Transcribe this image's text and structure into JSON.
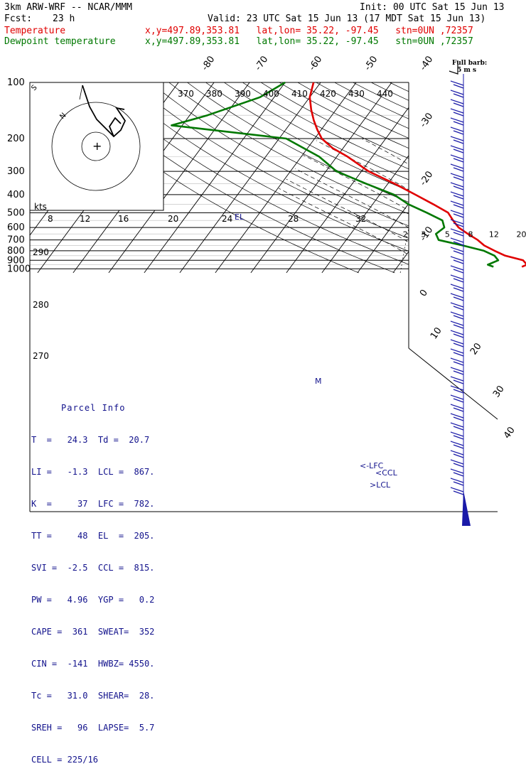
{
  "header": {
    "model": "3km ARW-WRF -- NCAR/MMM",
    "init": "Init: 00 UTC Sat 15 Jun 13",
    "fcst_label": "Fcst:",
    "fcst_value": "23 h",
    "valid": "Valid: 23 UTC Sat 15 Jun 13 (17 MDT Sat 15 Jun 13)",
    "temp_label": "Temperature",
    "dew_label": "Dewpoint temperature",
    "location": "x,y=497.89,353.81   lat,lon= 35.22, -97.45   stn=0UN ,72357"
  },
  "wind_barb": {
    "title": "Full barb:",
    "value": "5 m s"
  },
  "parcel_info": {
    "title": "Parcel Info",
    "rows": [
      "T  =   24.3  Td =  20.7",
      "LI =   -1.3  LCL =  867.",
      "K  =     37  LFC =  782.",
      "TT =     48  EL  =  205.",
      "SVI =  -2.5  CCL =  815.",
      "PW =   4.96  YGP =   0.2",
      "CAPE =  361  SWEAT=  352",
      "CIN =  -141  HWBZ= 4550.",
      "Tc =   31.0  SHEAR=  28.",
      "SREH =   96  LAPSE=  5.7",
      "CELL = 225/16"
    ]
  },
  "colors": {
    "temperature": "#e00000",
    "dewpoint": "#007800",
    "parcel_text": "#12128c",
    "hodograph_labels": "#12128c"
  },
  "chart_data": {
    "type": "line",
    "subtype": "skew-T log-p sounding",
    "pressure_levels": [
      100,
      200,
      300,
      400,
      500,
      600,
      700,
      800,
      900,
      1000
    ],
    "pressure_range": [
      100,
      1020
    ],
    "isotherm_labels": [
      -80,
      -70,
      -60,
      -50,
      -40,
      -30,
      -20,
      -10,
      0,
      10,
      20,
      30,
      40
    ],
    "theta_labels_top": [
      370,
      380,
      390,
      400,
      410,
      420,
      430,
      440
    ],
    "theta_labels_left": [
      290,
      280,
      270
    ],
    "mixing_ratio_labels": [
      2,
      3,
      5,
      8,
      12,
      20
    ],
    "hodograph_speed_labels": [
      8,
      12,
      16,
      20,
      24,
      28,
      32
    ],
    "hodograph_units": "kts",
    "annotations": [
      "EL",
      "LFC",
      "CCL",
      "LCL",
      "M"
    ],
    "series": [
      {
        "name": "Temperature",
        "points": [
          {
            "p": 100,
            "t": -72
          },
          {
            "p": 120,
            "t": -70
          },
          {
            "p": 140,
            "t": -67
          },
          {
            "p": 160,
            "t": -64
          },
          {
            "p": 180,
            "t": -61
          },
          {
            "p": 200,
            "t": -58
          },
          {
            "p": 225,
            "t": -53
          },
          {
            "p": 250,
            "t": -47
          },
          {
            "p": 300,
            "t": -38
          },
          {
            "p": 350,
            "t": -28
          },
          {
            "p": 400,
            "t": -20
          },
          {
            "p": 450,
            "t": -13
          },
          {
            "p": 500,
            "t": -7
          },
          {
            "p": 550,
            "t": -4
          },
          {
            "p": 600,
            "t": -1
          },
          {
            "p": 650,
            "t": 3
          },
          {
            "p": 700,
            "t": 7
          },
          {
            "p": 750,
            "t": 10
          },
          {
            "p": 800,
            "t": 14
          },
          {
            "p": 850,
            "t": 18
          },
          {
            "p": 900,
            "t": 24
          },
          {
            "p": 950,
            "t": 26
          },
          {
            "p": 975,
            "t": 25
          }
        ]
      },
      {
        "name": "Dewpoint temperature",
        "points": [
          {
            "p": 100,
            "t": -80
          },
          {
            "p": 120,
            "t": -84
          },
          {
            "p": 150,
            "t": -95
          },
          {
            "p": 170,
            "t": -103
          },
          {
            "p": 200,
            "t": -68
          },
          {
            "p": 250,
            "t": -55
          },
          {
            "p": 300,
            "t": -47
          },
          {
            "p": 350,
            "t": -36
          },
          {
            "p": 400,
            "t": -26
          },
          {
            "p": 450,
            "t": -20
          },
          {
            "p": 500,
            "t": -13
          },
          {
            "p": 550,
            "t": -7
          },
          {
            "p": 600,
            "t": -5
          },
          {
            "p": 650,
            "t": -6
          },
          {
            "p": 700,
            "t": -4
          },
          {
            "p": 750,
            "t": 4
          },
          {
            "p": 800,
            "t": 11
          },
          {
            "p": 850,
            "t": 15
          },
          {
            "p": 900,
            "t": 17
          },
          {
            "p": 950,
            "t": 15
          },
          {
            "p": 975,
            "t": 17
          }
        ]
      }
    ]
  }
}
